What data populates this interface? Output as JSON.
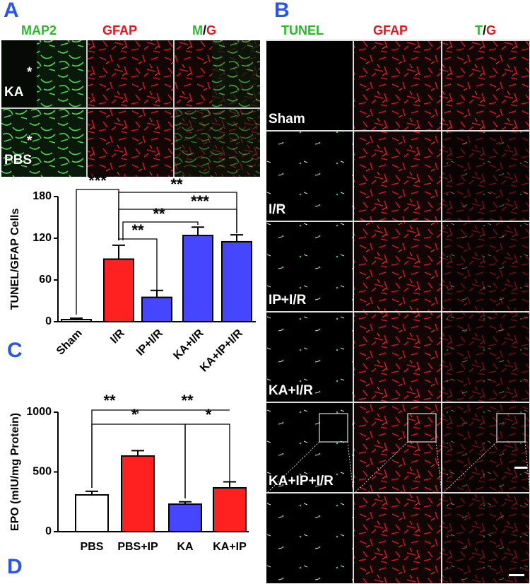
{
  "panel_a": {
    "label": "A",
    "columns": [
      "MAP2",
      "GFAP"
    ],
    "merge": [
      "M",
      "/",
      "G"
    ],
    "rows": [
      "KA",
      "PBS"
    ],
    "marker": "*"
  },
  "panel_b": {
    "label": "B",
    "columns": [
      "TUNEL",
      "GFAP"
    ],
    "merge": [
      "T",
      "/",
      "G"
    ],
    "rows": [
      "Sham",
      "I/R",
      "IP+I/R",
      "KA+I/R",
      "KA+IP+I/R"
    ]
  },
  "chart_data": [
    {
      "type": "bar",
      "label": "C",
      "y_label": "TUNEL/GFAP Cells",
      "categories": [
        "Sham",
        "I/R",
        "IP+I/R",
        "KA+I/R",
        "KA+IP+I/R"
      ],
      "values": [
        3,
        90,
        35,
        124,
        115
      ],
      "errors": [
        2,
        20,
        10,
        12,
        10
      ],
      "colors": [
        "#ffffff",
        "#ff2020",
        "#4646ff",
        "#4646ff",
        "#4646ff"
      ],
      "ylim": [
        0,
        180
      ],
      "yticks": [
        0,
        60,
        120,
        180
      ],
      "annotations": [
        "***",
        "**",
        "***",
        "**",
        "**"
      ]
    },
    {
      "type": "bar",
      "label": "D",
      "y_label": "EPO (mIU/mg Protein)",
      "categories": [
        "PBS",
        "PBS+IP",
        "KA",
        "KA+IP"
      ],
      "values": [
        308,
        633,
        230,
        367
      ],
      "errors": [
        30,
        45,
        20,
        50
      ],
      "colors": [
        "#ffffff",
        "#ff2020",
        "#4646ff",
        "#ff2020"
      ],
      "ylim": [
        0,
        1000
      ],
      "yticks": [
        0,
        500,
        1000
      ],
      "annotations": [
        "**",
        "*",
        "**",
        "*"
      ]
    }
  ]
}
